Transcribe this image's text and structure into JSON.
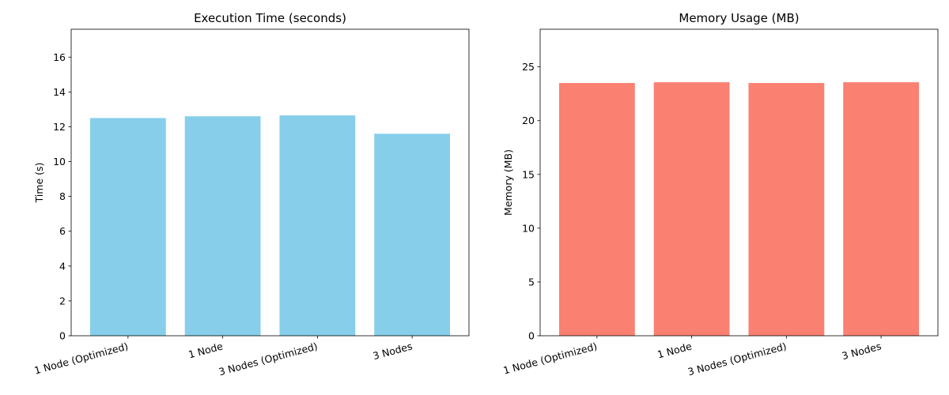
{
  "chart_data": [
    {
      "type": "bar",
      "title": "Execution Time (seconds)",
      "xlabel": "",
      "ylabel": "Time (s)",
      "categories": [
        "1 Node (Optimized)",
        "1 Node",
        "3 Nodes (Optimized)",
        "3 Nodes"
      ],
      "values": [
        12.5,
        12.6,
        12.65,
        11.6
      ],
      "ylim": [
        0,
        17.6
      ],
      "yticks": [
        0,
        2,
        4,
        6,
        8,
        10,
        12,
        14,
        16
      ],
      "color": "#87ceeb",
      "grid": false,
      "legend": "none"
    },
    {
      "type": "bar",
      "title": "Memory Usage (MB)",
      "xlabel": "",
      "ylabel": "Memory (MB)",
      "categories": [
        "1 Node (Optimized)",
        "1 Node",
        "3 Nodes (Optimized)",
        "3 Nodes"
      ],
      "values": [
        23.5,
        23.57,
        23.5,
        23.57
      ],
      "ylim": [
        0,
        28.5
      ],
      "yticks": [
        0,
        5,
        10,
        15,
        20,
        25
      ],
      "color": "#fa8072",
      "grid": false,
      "legend": "none"
    }
  ]
}
